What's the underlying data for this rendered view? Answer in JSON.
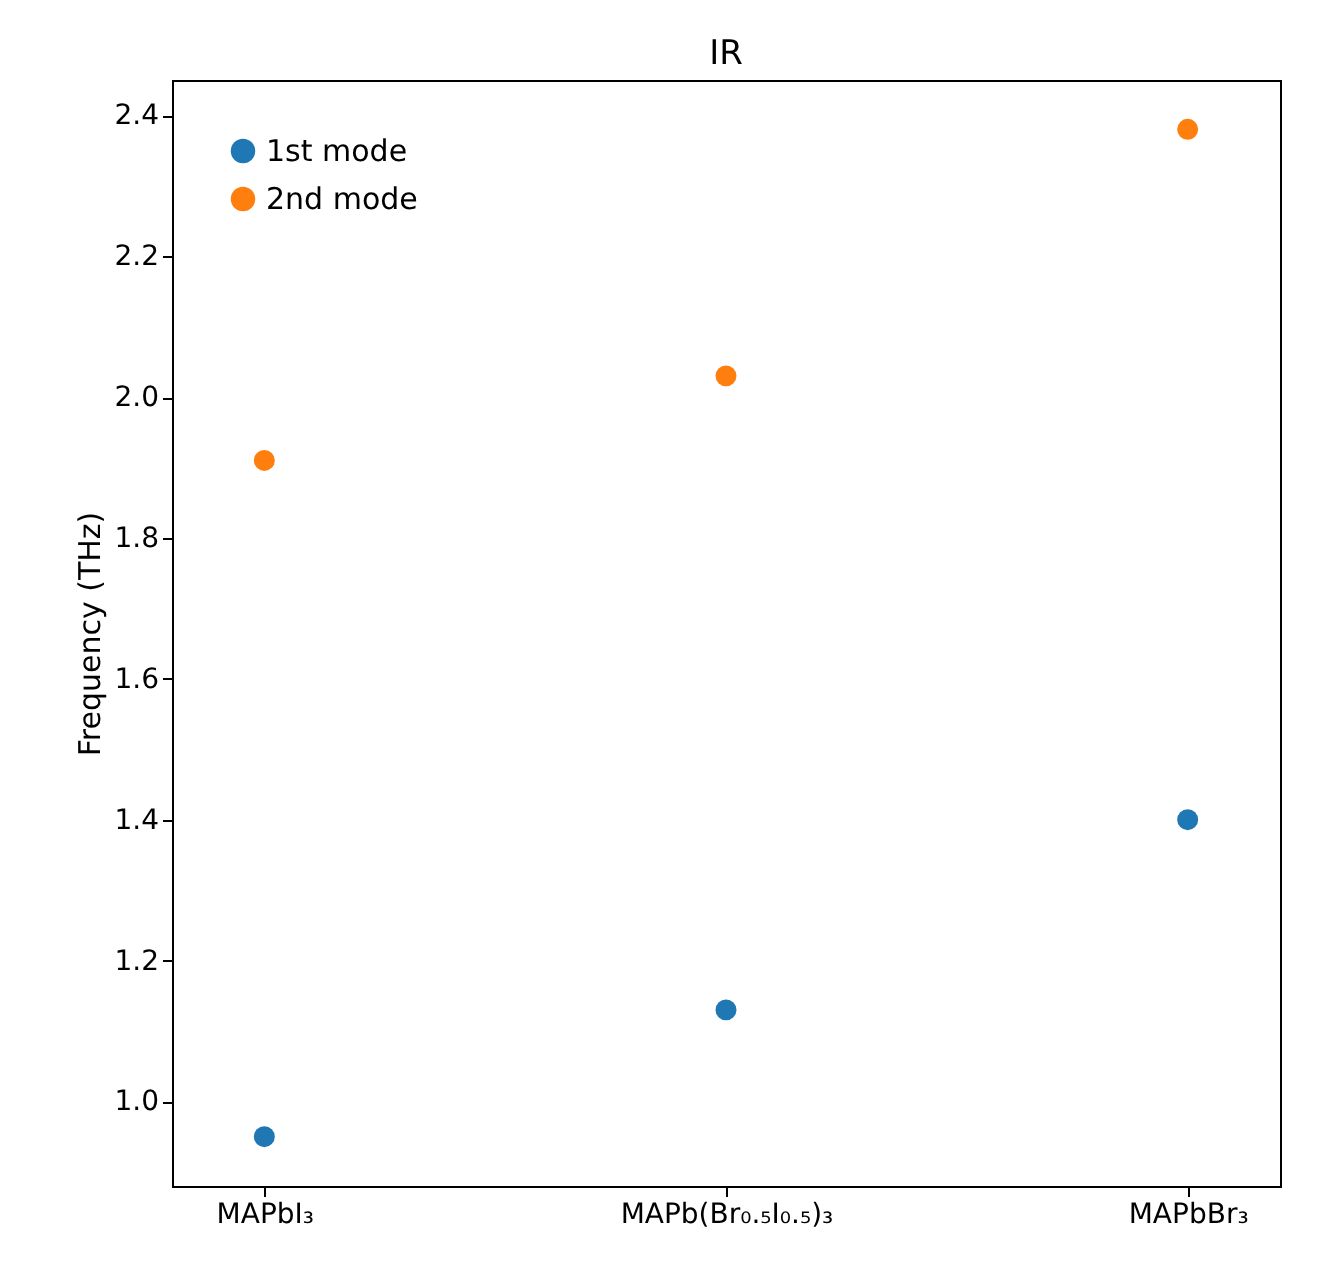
{
  "chart_data": {
    "type": "scatter",
    "title": "IR",
    "ylabel": "Frequency (THz)",
    "categories": [
      "MAPbI₃",
      "MAPb(Br₀.₅I₀.₅)₃",
      "MAPbBr₃"
    ],
    "series": [
      {
        "name": "1st mode",
        "color": "#1f77b4",
        "values": [
          0.95,
          1.13,
          1.4
        ]
      },
      {
        "name": "2nd mode",
        "color": "#ff7f0e",
        "values": [
          1.91,
          2.03,
          2.38
        ]
      }
    ],
    "ylim": [
      0.88,
      2.45
    ],
    "yticks": [
      {
        "value": 1,
        "label": "1.0"
      },
      {
        "value": 1.2,
        "label": "1.2"
      },
      {
        "value": 1.4,
        "label": "1.4"
      },
      {
        "value": 1.6,
        "label": "1.6"
      },
      {
        "value": 1.8,
        "label": "1.8"
      },
      {
        "value": 2,
        "label": "2.0"
      },
      {
        "value": 2.2,
        "label": "2.2"
      },
      {
        "value": 2.4,
        "label": "2.4"
      }
    ],
    "grid": false,
    "legend": "top left",
    "marker": "circle"
  }
}
